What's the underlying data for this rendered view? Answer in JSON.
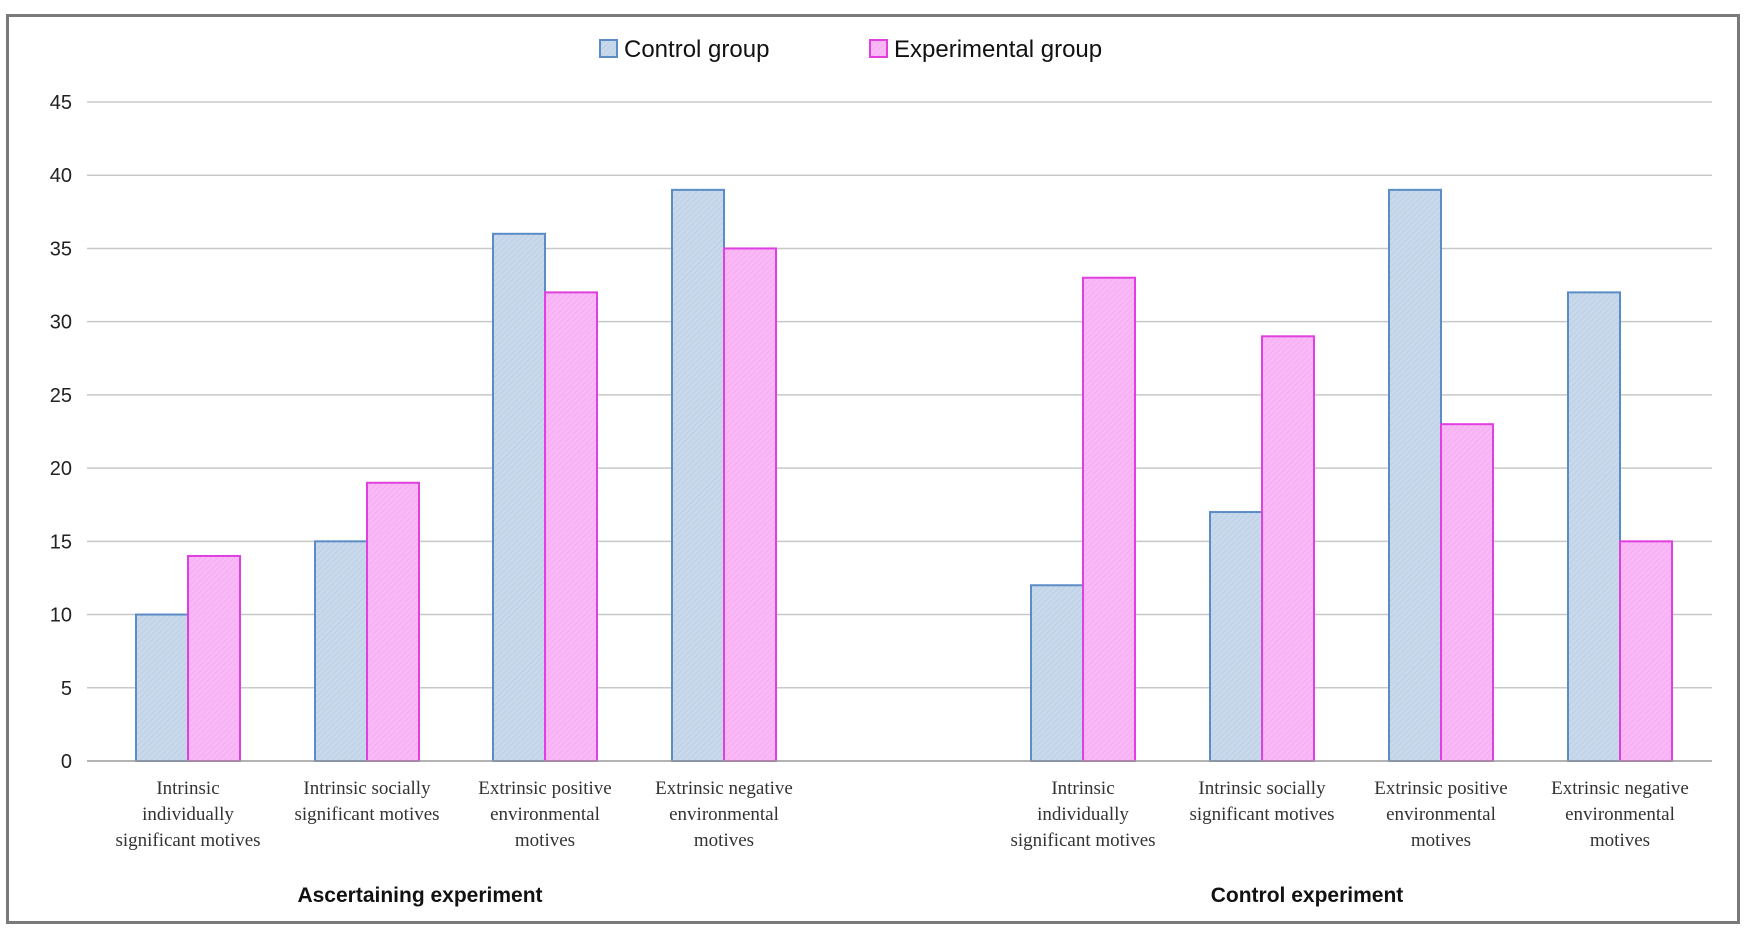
{
  "chart_data": {
    "type": "bar",
    "title": "",
    "xlabel": "",
    "ylabel": "",
    "ylim": [
      0,
      45
    ],
    "yticks": [
      0,
      5,
      10,
      15,
      20,
      25,
      30,
      35,
      40,
      45
    ],
    "grid": true,
    "legend_position": "top-center",
    "groups": [
      {
        "label": "Ascertaining experiment",
        "categories": [
          [
            "Intrinsic",
            "individually",
            "significant motives"
          ],
          [
            "Intrinsic socially",
            "significant motives"
          ],
          [
            "Extrinsic positive",
            "environmental",
            "motives"
          ],
          [
            "Extrinsic negative",
            "environmental",
            "motives"
          ]
        ],
        "series": [
          {
            "name": "Control group",
            "values": [
              10,
              15,
              36,
              39
            ]
          },
          {
            "name": "Experimental group",
            "values": [
              14,
              19,
              32,
              35
            ]
          }
        ]
      },
      {
        "label": "Control experiment",
        "categories": [
          [
            "Intrinsic",
            "individually",
            "significant motives"
          ],
          [
            "Intrinsic socially",
            "significant motives"
          ],
          [
            "Extrinsic positive",
            "environmental",
            "motives"
          ],
          [
            "Extrinsic negative",
            "environmental",
            "motives"
          ]
        ],
        "series": [
          {
            "name": "Control group",
            "values": [
              12,
              17,
              39,
              32
            ]
          },
          {
            "name": "Experimental group",
            "values": [
              33,
              29,
              23,
              15
            ]
          }
        ]
      }
    ],
    "legend": [
      {
        "name": "Control group",
        "fill": "#c9d9ec",
        "stroke": "#5b8cc6"
      },
      {
        "name": "Experimental group",
        "fill": "#f9b8f6",
        "stroke": "#e040e0"
      }
    ]
  }
}
